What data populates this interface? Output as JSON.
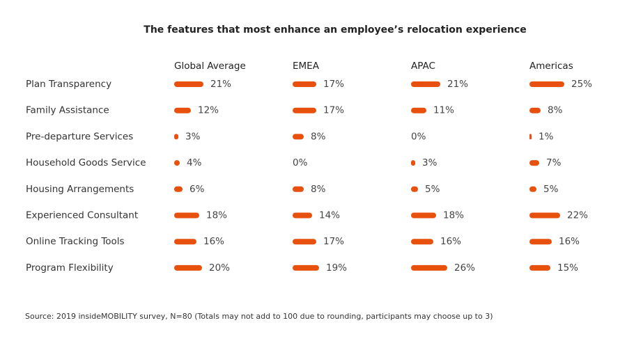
{
  "chart_data": {
    "type": "bar",
    "title": "The features that most enhance an employee’s relocation experience",
    "categories": [
      "Plan Transparency",
      "Family Assistance",
      "Pre-departure Services",
      "Household Goods Service",
      "Housing Arrangements",
      "Experienced Consultant",
      "Online Tracking Tools",
      "Program Flexibility"
    ],
    "series": [
      {
        "name": "Global Average",
        "values": [
          21,
          12,
          3,
          4,
          6,
          18,
          16,
          20
        ]
      },
      {
        "name": "EMEA",
        "values": [
          17,
          17,
          8,
          0,
          8,
          14,
          17,
          19
        ]
      },
      {
        "name": "APAC",
        "values": [
          21,
          11,
          0,
          3,
          5,
          18,
          16,
          26
        ]
      },
      {
        "name": "Americas",
        "values": [
          25,
          8,
          1,
          7,
          5,
          22,
          16,
          15
        ]
      }
    ],
    "value_suffix": "%",
    "bar_color": "#E8500E",
    "source": "Source: 2019 insideMOBILITY survey, N=80  (Totals may not add to 100 due to rounding, participants may choose up to 3)"
  }
}
